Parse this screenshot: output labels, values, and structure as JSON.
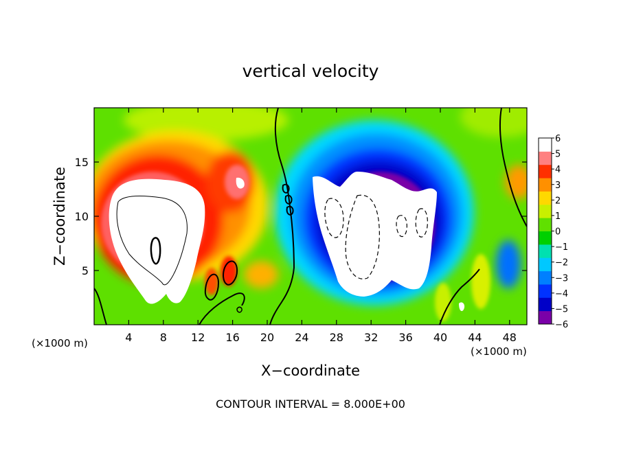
{
  "chart_data": {
    "type": "heatmap",
    "title": "vertical velocity",
    "xlabel": "X−coordinate",
    "ylabel": "Z−coordinate",
    "x_unit_left": "(×1000 m)",
    "x_unit_right": "(×1000 m)",
    "footer": "CONTOUR INTERVAL = 8.000E+00",
    "xlim": [
      0,
      50
    ],
    "ylim": [
      0,
      20
    ],
    "x_ticks": [
      4,
      8,
      12,
      16,
      20,
      24,
      28,
      32,
      36,
      40,
      44,
      48
    ],
    "y_ticks": [
      5,
      10,
      15
    ],
    "colorbar": {
      "ticks": [
        6,
        5,
        4,
        3,
        2,
        1,
        0,
        -1,
        -2,
        -3,
        -4,
        -5,
        -6
      ],
      "tick_labels": [
        "6",
        "5",
        "4",
        "3",
        "2",
        "1",
        "0",
        "−1",
        "−2",
        "−3",
        "−4",
        "−5",
        "−6"
      ],
      "range": [
        -6,
        6
      ],
      "colors": [
        "#7a00a8",
        "#0000c8",
        "#0032ff",
        "#0080ff",
        "#00c8ff",
        "#00e0b0",
        "#00d000",
        "#60e000",
        "#c8f000",
        "#ffd800",
        "#ff9000",
        "#ff3000",
        "#ff8080",
        "#ffffff"
      ]
    },
    "grid": false,
    "legend": "right-colorbar"
  }
}
